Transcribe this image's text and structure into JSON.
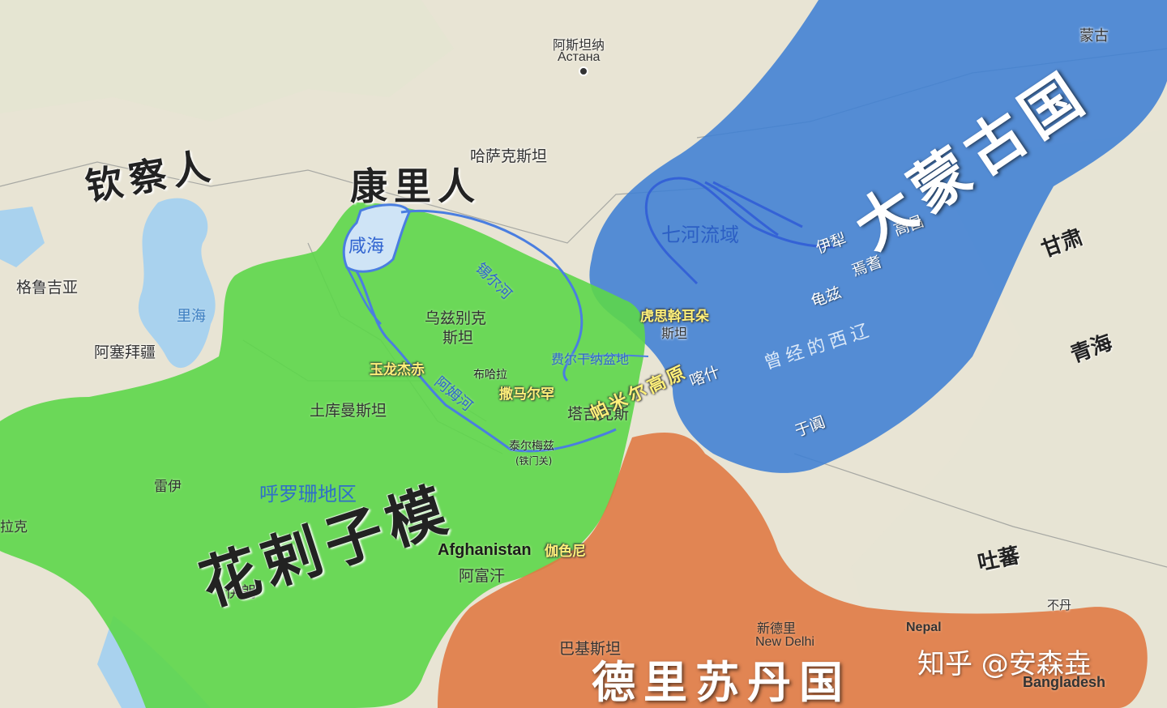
{
  "map": {
    "colors": {
      "khwarazm": "#5dd64a",
      "mongol": "#3f80d4",
      "delhi": "#e07a45",
      "terrain": "#e9e5d6",
      "water": "#a9d2ee"
    },
    "polities": {
      "khwarazm": "花剌子模",
      "mongol": "大蒙古国",
      "delhi": "德里苏丹国",
      "kipchak": "钦察人",
      "kangli": "康里人"
    },
    "regions": {
      "khorasan": "呼罗珊地区",
      "seven_rivers": "七河流域",
      "western_liao": "曾经的西辽",
      "pamir": "帕米尔高原"
    },
    "rivers": {
      "syr": "锡尔河",
      "amu": "阿姆河",
      "aral": "咸海",
      "caspian": "里海",
      "fergana": "费尔干纳盆地"
    },
    "cities_historic": {
      "kuhsi": "虎思斡耳朵",
      "urgench": "玉龙杰赤",
      "samarkand": "撒马尔罕",
      "ghazni": "伽色尼",
      "bukhara": "布哈拉",
      "termez": "泰尔梅兹",
      "iron_gate": "(铁门关)",
      "kashgar": "喀什",
      "khotan": "于阗",
      "kucha": "龟兹",
      "yanqi": "焉耆",
      "ili": "伊犁",
      "gaochang": "高昌",
      "gansu": "甘肃",
      "qinghai": "青海",
      "tubo": "吐蕃"
    },
    "modern": {
      "astana_cn": "阿斯坦纳",
      "astana_ru": "Астана",
      "kazakhstan": "哈萨克斯坦",
      "georgia": "格鲁吉亚",
      "azerbaijan": "阿塞拜疆",
      "uzbekistan_1": "乌兹别克",
      "uzbekistan_2": "斯坦",
      "turkmenistan": "土库曼斯坦",
      "kyrgyz_part": "斯坦",
      "tajikistan": "塔吉克斯",
      "rey": "雷伊",
      "iraq_part": "拉克",
      "iran": "伊朗",
      "afghanistan_en": "Afghanistan",
      "afghanistan_cn": "阿富汗",
      "pakistan": "巴基斯坦",
      "new_delhi_cn": "新德里",
      "new_delhi_en": "New Delhi",
      "nepal": "Nepal",
      "bhutan": "不丹",
      "bangladesh": "Bangladesh",
      "mongolia": "蒙古"
    },
    "watermark": "知乎 @安森垚"
  }
}
